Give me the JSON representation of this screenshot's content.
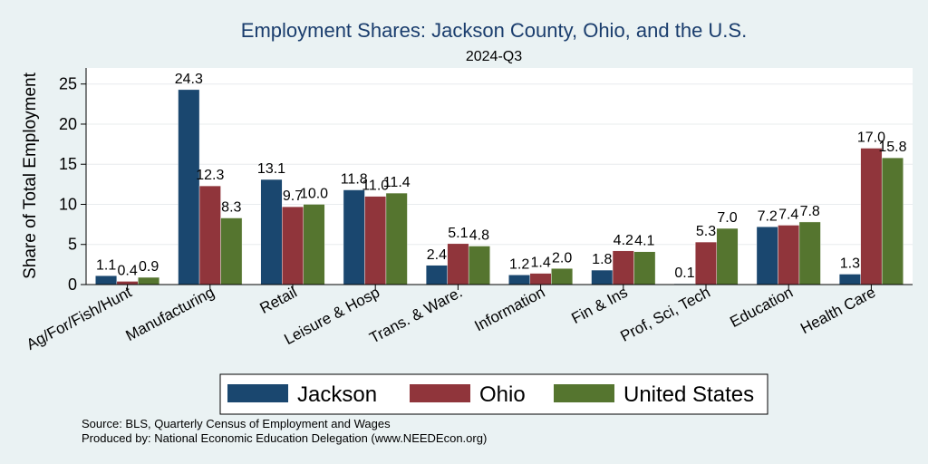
{
  "chart_data": {
    "type": "bar",
    "title": "Employment Shares: Jackson County, Ohio, and the U.S.",
    "subtitle": "2024-Q3",
    "xlabel": "",
    "ylabel": "Share of Total Employment",
    "ylim": [
      0,
      27
    ],
    "yticks": [
      0,
      5,
      10,
      15,
      20,
      25
    ],
    "grid": true,
    "legend_position": "bottom",
    "categories": [
      "Ag/For/Fish/Hunt",
      "Manufacturing",
      "Retail",
      "Leisure & Hosp",
      "Trans. & Ware.",
      "Information",
      "Fin & Ins",
      "Prof, Sci, Tech",
      "Education",
      "Health Care"
    ],
    "series": [
      {
        "name": "Jackson",
        "color": "#1a476f",
        "values": [
          1.1,
          24.3,
          13.1,
          11.8,
          2.4,
          1.2,
          1.8,
          0.1,
          7.2,
          1.3
        ],
        "labels": [
          "1.1",
          "24.3",
          "13.1",
          "11.8",
          "2.4",
          "1.2",
          "1.8",
          "0.1",
          "7.2",
          "1.3"
        ]
      },
      {
        "name": "Ohio",
        "color": "#90353b",
        "values": [
          0.4,
          12.3,
          9.7,
          11.0,
          5.1,
          1.4,
          4.2,
          5.3,
          7.4,
          17.0
        ],
        "labels": [
          "0.4",
          "12.3",
          "9.7",
          "11.0",
          "5.1",
          "1.4",
          "4.2",
          "5.3",
          "7.4",
          "17.0"
        ]
      },
      {
        "name": "United States",
        "color": "#55752f",
        "values": [
          0.9,
          8.3,
          10.0,
          11.4,
          4.8,
          2.0,
          4.1,
          7.0,
          7.8,
          15.8
        ],
        "labels": [
          "0.9",
          "8.3",
          "10.0",
          "11.4",
          "4.8",
          "2.0",
          "4.1",
          "7.0",
          "7.8",
          "15.8"
        ]
      }
    ],
    "source_lines": [
      "Source: BLS, Quarterly Census of Employment and Wages",
      "Produced by: National Economic Education Delegation (www.NEEDEcon.org)"
    ]
  }
}
